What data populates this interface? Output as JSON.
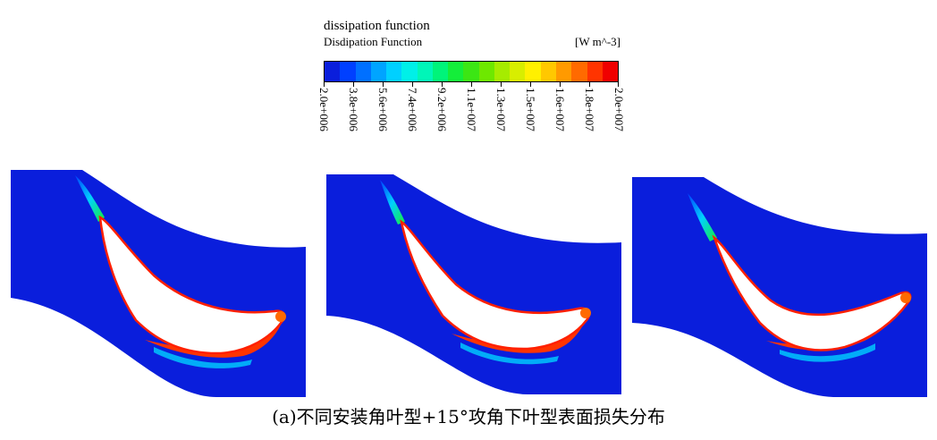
{
  "legend": {
    "title": "dissipation function",
    "subtitle": "Disdipation Function",
    "unit": "[W m^-3]",
    "tick_labels": [
      "2.0e+006",
      "3.8e+006",
      "5.6e+006",
      "7.4e+006",
      "9.2e+006",
      "1.1e+007",
      "1.3e+007",
      "1.5e+007",
      "1.6e+007",
      "1.8e+007",
      "2.0e+007"
    ],
    "colors": [
      "#0a1edc",
      "#0040ff",
      "#0070ff",
      "#00a4ff",
      "#00d0ff",
      "#00f0e8",
      "#00f6b8",
      "#00f47a",
      "#14ee3a",
      "#3ce614",
      "#6ee800",
      "#a6ec00",
      "#d8ee00",
      "#fff000",
      "#ffc800",
      "#ff9a00",
      "#ff6a00",
      "#ff3400",
      "#f00000"
    ]
  },
  "panels": [
    {
      "name": "blade-panel-1"
    },
    {
      "name": "blade-panel-2"
    },
    {
      "name": "blade-panel-3"
    }
  ],
  "caption": "(a)不同安装角叶型+15°攻角下叶型表面损失分布"
}
